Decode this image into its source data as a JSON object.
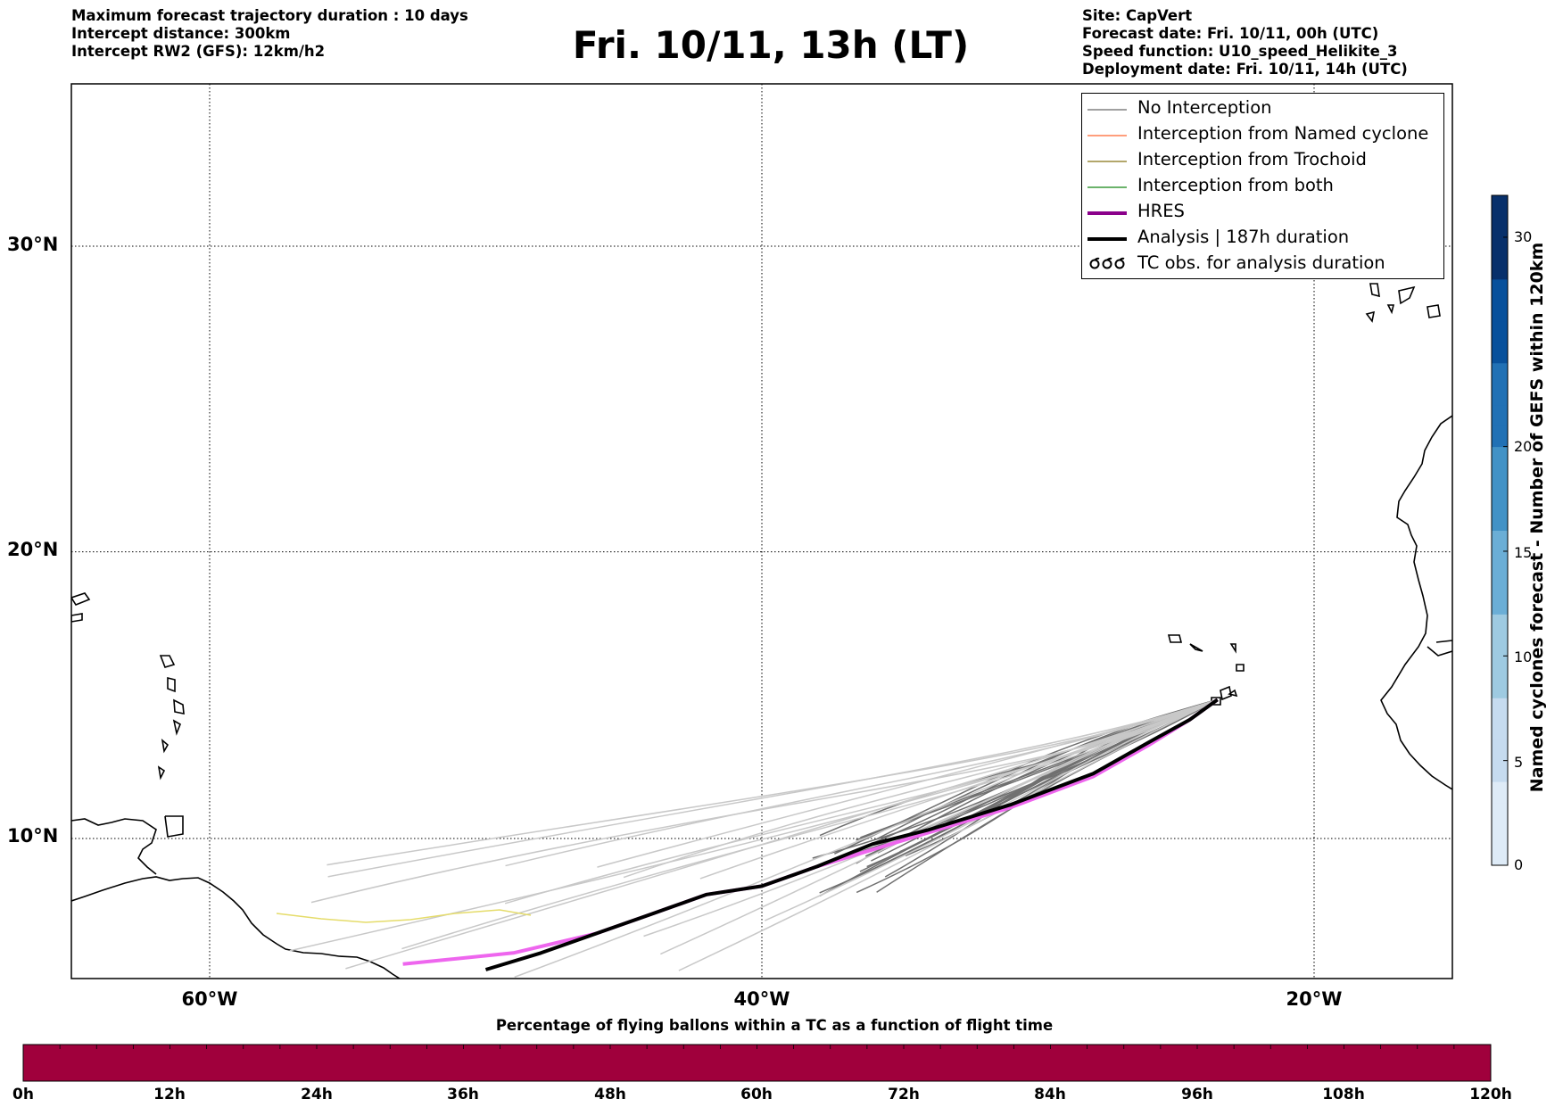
{
  "header": {
    "info_left": [
      "Maximum forecast trajectory duration : 10 days",
      "Intercept distance: 300km",
      "Intercept RW2 (GFS):  12km/h2"
    ],
    "title": "Fri. 10/11, 13h (LT)",
    "info_right": [
      "Site: CapVert",
      "Forecast date: Fri. 10/11, 00h (UTC)",
      "Speed function: U10_speed_Helikite_3",
      "Deployment date: Fri. 10/11, 14h (UTC)"
    ]
  },
  "map": {
    "lon_range": [
      -65,
      15
    ],
    "lat_range": [
      5.4,
      34.7
    ],
    "lat_labels": [
      {
        "value": 30,
        "text": "30°N"
      },
      {
        "value": 20,
        "text": "20°N"
      },
      {
        "value": 10,
        "text": "10°N"
      }
    ],
    "lon_labels": [
      {
        "value": -60,
        "text": "60°W"
      },
      {
        "value": -40,
        "text": "40°W"
      },
      {
        "value": -20,
        "text": "20°W"
      }
    ],
    "launch_site": {
      "lon": -23.5,
      "lat": 14.9,
      "name": "CapVert"
    }
  },
  "legend": {
    "items": [
      {
        "label": "No Interception",
        "color": "#808080",
        "width": 1.5,
        "style": "line"
      },
      {
        "label": "Interception from Named cyclone",
        "color": "#ff7f50",
        "width": 1.5,
        "style": "line"
      },
      {
        "label": "Interception from Trochoid",
        "color": "#9a8a3a",
        "width": 1.5,
        "style": "line"
      },
      {
        "label": "Interception from both",
        "color": "#3a9a3a",
        "width": 1.5,
        "style": "line"
      },
      {
        "label": "HRES",
        "color": "#8b008b",
        "width": 4,
        "style": "line"
      },
      {
        "label": "Analysis | 187h duration",
        "color": "#000000",
        "width": 4,
        "style": "line"
      },
      {
        "label": "TC obs. for analysis duration",
        "color": "#000000",
        "width": 2,
        "style": "tc-symbol"
      }
    ]
  },
  "colorbar_right": {
    "title": "Named cyclones forecast - Number of GEFS within 120km",
    "ticks": [
      0,
      5,
      10,
      15,
      20,
      30
    ],
    "min": 0,
    "max": 32,
    "colors": [
      "#deebf7",
      "#c6dbef",
      "#9ecae1",
      "#6baed6",
      "#4292c6",
      "#2171b5",
      "#08519c",
      "#08306b"
    ]
  },
  "colorbar_bottom": {
    "title": "Percentage of flying ballons within a TC as a function of flight time",
    "ticks": [
      "0h",
      "12h",
      "24h",
      "36h",
      "48h",
      "60h",
      "72h",
      "84h",
      "96h",
      "108h",
      "120h"
    ],
    "fill_color": "#a0003c"
  },
  "chart_data": {
    "type": "line",
    "x_label_unit": "longitude",
    "y_label_unit": "latitude",
    "series": [
      {
        "name": "Analysis | 187h duration",
        "color": "#000000",
        "points": [
          [
            -23.5,
            14.9
          ],
          [
            -24.5,
            14.2
          ],
          [
            -26,
            13.4
          ],
          [
            -28,
            12.3
          ],
          [
            -31,
            11.2
          ],
          [
            -34,
            10.3
          ],
          [
            -36,
            9.8
          ],
          [
            -38,
            9.0
          ],
          [
            -40,
            8.3
          ],
          [
            -42,
            8.0
          ],
          [
            -44,
            7.3
          ],
          [
            -46,
            6.6
          ],
          [
            -48,
            5.9
          ],
          [
            -50,
            5.3
          ]
        ]
      },
      {
        "name": "HRES",
        "color": "#ee66ee",
        "points": [
          [
            -23.5,
            14.9
          ],
          [
            -24.5,
            14.2
          ],
          [
            -26,
            13.3
          ],
          [
            -28,
            12.2
          ],
          [
            -31,
            11.1
          ],
          [
            -34,
            10.2
          ],
          [
            -36,
            9.6
          ],
          [
            -38,
            9.0
          ],
          [
            -40,
            8.3
          ],
          [
            -42,
            8.0
          ],
          [
            -44,
            7.3
          ],
          [
            -46,
            6.6
          ],
          [
            -49,
            5.9
          ],
          [
            -53,
            5.5
          ]
        ]
      },
      {
        "name": "No Interception",
        "color": "#ffffff",
        "points": []
      }
    ]
  }
}
